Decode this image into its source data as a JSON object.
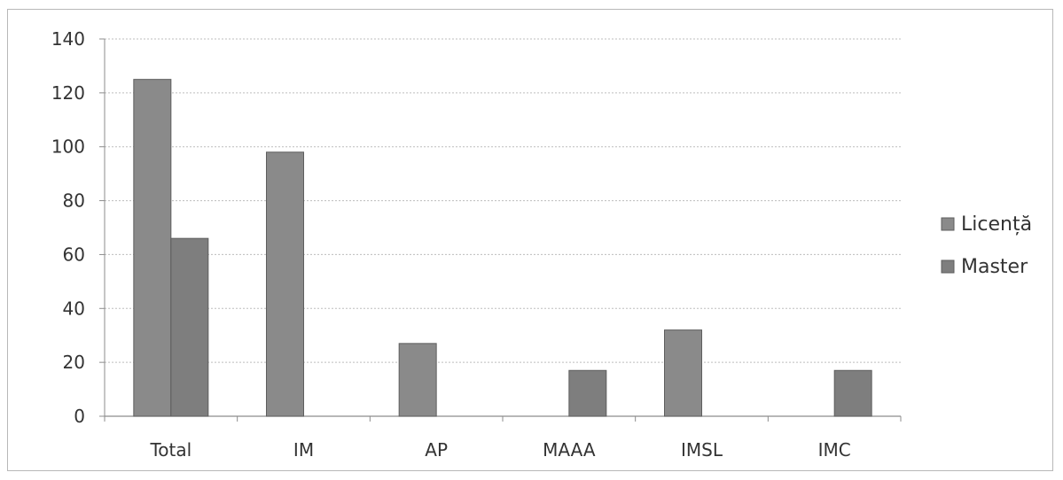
{
  "chart_data": {
    "type": "bar",
    "categories": [
      "Total",
      "IM",
      "AP",
      "MAAA",
      "IMSL",
      "IMC"
    ],
    "series": [
      {
        "name": "Licență",
        "values": [
          125,
          98,
          27,
          0,
          32,
          0
        ],
        "color": "#8a8a8a"
      },
      {
        "name": "Master",
        "values": [
          66,
          0,
          0,
          17,
          0,
          17
        ],
        "color": "#7e7e7e"
      }
    ],
    "y_ticks": [
      0,
      20,
      40,
      60,
      80,
      100,
      120,
      140
    ],
    "ylim": [
      0,
      140
    ],
    "grid": true,
    "legend_position": "right"
  }
}
